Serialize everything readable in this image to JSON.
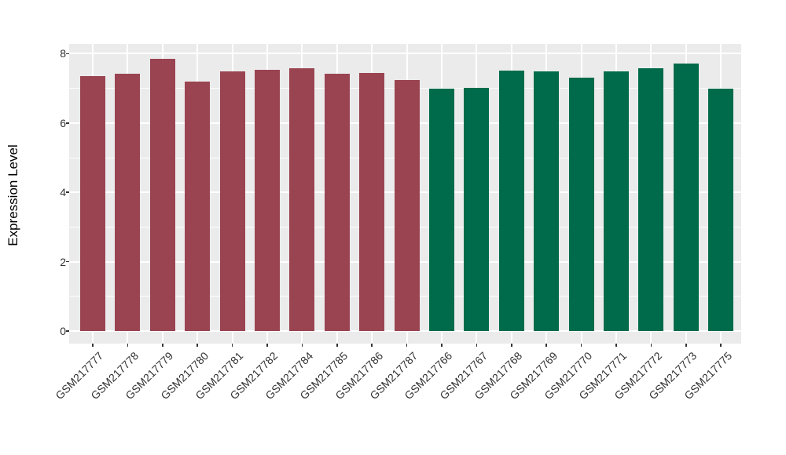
{
  "page": {
    "background": "#FFFFFF"
  },
  "chart_data": {
    "type": "bar",
    "title": "",
    "ylabel": "Expression Level",
    "xlabel": "",
    "yticks": [
      0,
      2,
      4,
      6,
      8
    ],
    "ylim": [
      0,
      8.65
    ],
    "grid": "white major and minor horizontal lines plus vertical category lines on gray panel",
    "legend_position": "none",
    "panel_background": "#EBEBEB",
    "gridline_color": "#FFFFFF",
    "tick_text_color": "#333333",
    "categories": [
      "GSM217777",
      "GSM217778",
      "GSM217779",
      "GSM217780",
      "GSM217781",
      "GSM217782",
      "GSM217784",
      "GSM217785",
      "GSM217786",
      "GSM217787",
      "GSM217766",
      "GSM217767",
      "GSM217768",
      "GSM217769",
      "GSM217770",
      "GSM217771",
      "GSM217772",
      "GSM217773",
      "GSM217775"
    ],
    "values": [
      7.35,
      7.42,
      7.86,
      7.2,
      7.5,
      7.54,
      7.57,
      7.43,
      7.44,
      7.23,
      7.0,
      7.02,
      7.51,
      7.49,
      7.31,
      7.49,
      7.58,
      7.71,
      6.98
    ],
    "group_index": [
      0,
      0,
      0,
      0,
      0,
      0,
      0,
      0,
      0,
      0,
      1,
      1,
      1,
      1,
      1,
      1,
      1,
      1,
      1
    ],
    "group_colors": [
      "#9A4452",
      "#006B4A"
    ]
  }
}
